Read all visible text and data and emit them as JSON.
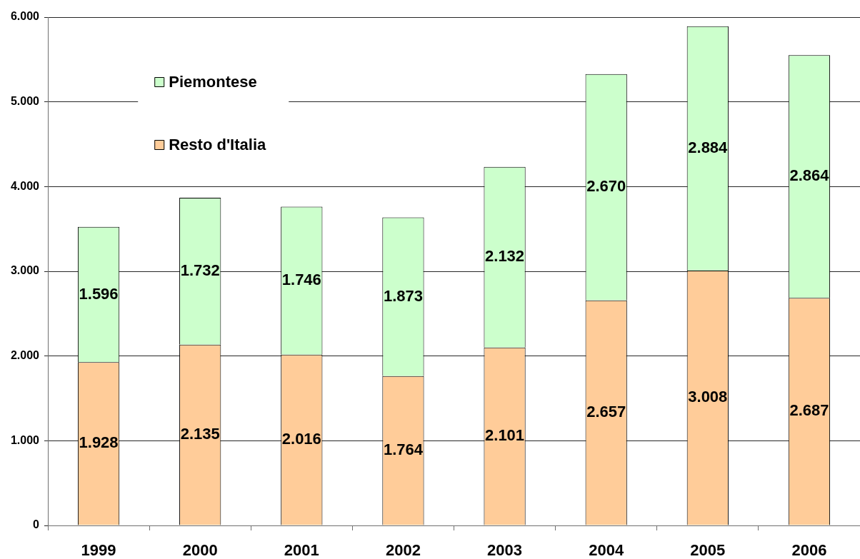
{
  "chart_data": {
    "type": "bar",
    "stacked": true,
    "categories": [
      "1999",
      "2000",
      "2001",
      "2002",
      "2003",
      "2004",
      "2005",
      "2006"
    ],
    "series": [
      {
        "name": "Resto d'Italia",
        "color": "#ffcc99",
        "values": [
          1928,
          2135,
          2016,
          1764,
          2101,
          2657,
          3008,
          2687
        ],
        "value_labels": [
          "1.928",
          "2.135",
          "2.016",
          "1.764",
          "2.101",
          "2.657",
          "3.008",
          "2.687"
        ]
      },
      {
        "name": "Piemontese",
        "color": "#ccffcc",
        "values": [
          1596,
          1732,
          1746,
          1873,
          2132,
          2670,
          2884,
          2864
        ],
        "value_labels": [
          "1.596",
          "1.732",
          "1.746",
          "1.873",
          "2.132",
          "2.670",
          "2.884",
          "2.864"
        ]
      }
    ],
    "ylim": [
      0,
      6000
    ],
    "yticks": [
      0,
      {
        "value": 1000,
        "label": "1.000"
      },
      {
        "value": 2000,
        "label": "2.000"
      },
      {
        "value": 3000,
        "label": "3.000"
      },
      {
        "value": 4000,
        "label": "4.000"
      },
      {
        "value": 5000,
        "label": "5.000"
      },
      {
        "value": 6000,
        "label": "6.000"
      }
    ],
    "grid": "y",
    "legend": "top left"
  }
}
